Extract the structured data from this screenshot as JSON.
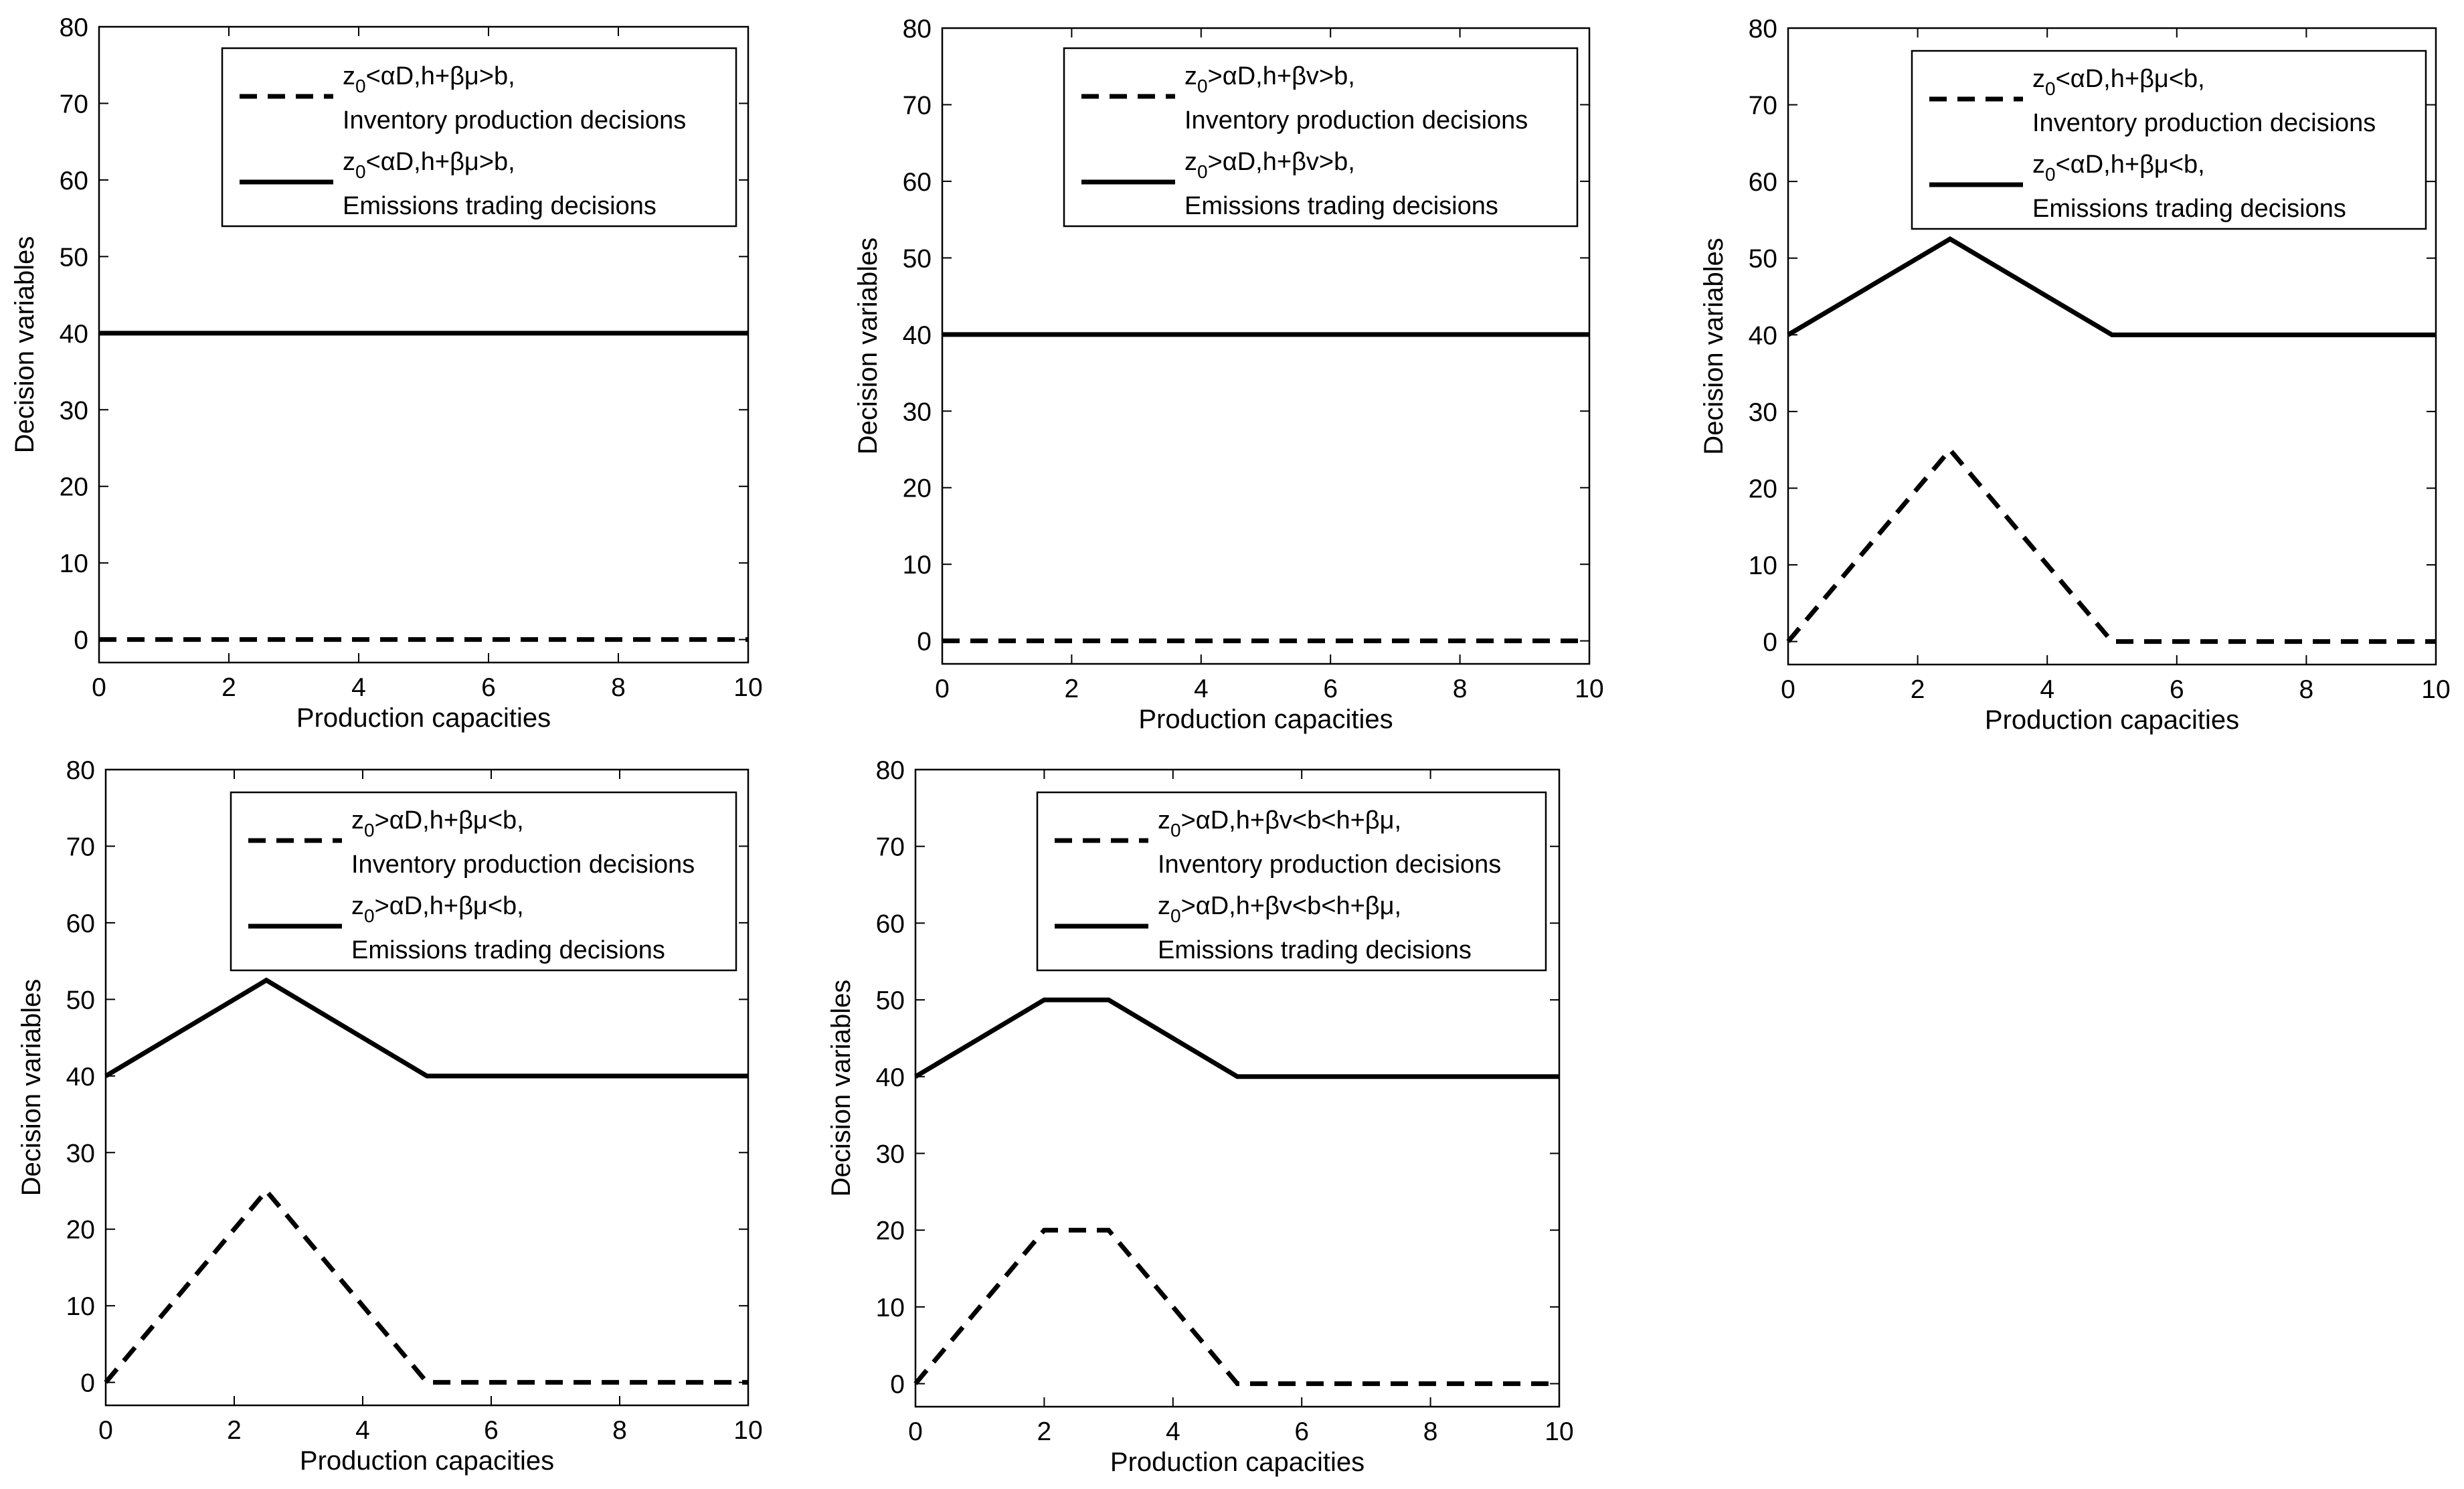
{
  "chart_data": [
    {
      "type": "line",
      "title": "",
      "xlabel": "Production capacities",
      "ylabel": "Decision variables",
      "xlim": [
        0,
        10
      ],
      "ylim": [
        -3,
        80
      ],
      "xticks": [
        0,
        2,
        4,
        6,
        8,
        10
      ],
      "yticks": [
        0,
        10,
        20,
        30,
        40,
        50,
        60,
        70,
        80
      ],
      "tick_labels_x": [
        "0",
        "2",
        "4",
        "6",
        "8",
        "10"
      ],
      "tick_labels_y": [
        "0",
        "10",
        "20",
        "30",
        "40",
        "50",
        "60",
        "70",
        "80"
      ],
      "grid": false,
      "legend_position": "top-right",
      "series": [
        {
          "name": "Inventory production decisions",
          "condition": "z0<αD,h+βμ>b,",
          "legend_main": "z",
          "legend_sub": "0",
          "legend_rest": "<αD,h+βμ>b,",
          "legend_desc": "Inventory production decisions",
          "style": "dashed",
          "x": [
            0,
            10
          ],
          "y": [
            0,
            0
          ]
        },
        {
          "name": "Emissions trading decisions",
          "condition": "z0<αD,h+βμ>b,",
          "legend_main": "z",
          "legend_sub": "0",
          "legend_rest": "<αD,h+βμ>b,",
          "legend_desc": "Emissions trading decisions",
          "style": "solid",
          "x": [
            0,
            10
          ],
          "y": [
            40,
            40
          ]
        }
      ]
    },
    {
      "type": "line",
      "title": "",
      "xlabel": "Production capacities",
      "ylabel": "Decision variables",
      "xlim": [
        0,
        10
      ],
      "ylim": [
        -3,
        80
      ],
      "xticks": [
        0,
        2,
        4,
        6,
        8,
        10
      ],
      "yticks": [
        0,
        10,
        20,
        30,
        40,
        50,
        60,
        70,
        80
      ],
      "tick_labels_x": [
        "0",
        "2",
        "4",
        "6",
        "8",
        "10"
      ],
      "tick_labels_y": [
        "0",
        "10",
        "20",
        "30",
        "40",
        "50",
        "60",
        "70",
        "80"
      ],
      "grid": false,
      "legend_position": "top-right",
      "series": [
        {
          "name": "Inventory production decisions",
          "condition": "z0>αD,h+βv>b,",
          "legend_main": "z",
          "legend_sub": "0",
          "legend_rest": ">αD,h+βv>b,",
          "legend_desc": "Inventory production decisions",
          "style": "dashed",
          "x": [
            0,
            10
          ],
          "y": [
            0,
            0
          ]
        },
        {
          "name": "Emissions trading decisions",
          "condition": "z0>αD,h+βv>b,",
          "legend_main": "z",
          "legend_sub": "0",
          "legend_rest": ">αD,h+βv>b,",
          "legend_desc": "Emissions trading decisions",
          "style": "solid",
          "x": [
            0,
            10
          ],
          "y": [
            40,
            40
          ]
        }
      ]
    },
    {
      "type": "line",
      "title": "",
      "xlabel": "Production capacities",
      "ylabel": "Decision variables",
      "xlim": [
        0,
        10
      ],
      "ylim": [
        -3,
        80
      ],
      "xticks": [
        0,
        2,
        4,
        6,
        8,
        10
      ],
      "yticks": [
        0,
        10,
        20,
        30,
        40,
        50,
        60,
        70,
        80
      ],
      "tick_labels_x": [
        "0",
        "2",
        "4",
        "6",
        "8",
        "10"
      ],
      "tick_labels_y": [
        "0",
        "10",
        "20",
        "30",
        "40",
        "50",
        "60",
        "70",
        "80"
      ],
      "grid": false,
      "legend_position": "top-right",
      "series": [
        {
          "name": "Inventory production decisions",
          "condition": "z0<αD,h+βμ<b,",
          "legend_main": "z",
          "legend_sub": "0",
          "legend_rest": "<αD,h+βμ<b,",
          "legend_desc": "Inventory production decisions",
          "style": "dashed",
          "x": [
            0,
            2.5,
            5,
            10
          ],
          "y": [
            0,
            25,
            0,
            0
          ]
        },
        {
          "name": "Emissions trading decisions",
          "condition": "z0<αD,h+βμ<b,",
          "legend_main": "z",
          "legend_sub": "0",
          "legend_rest": "<αD,h+βμ<b,",
          "legend_desc": "Emissions trading decisions",
          "style": "solid",
          "x": [
            0,
            2.5,
            5,
            10
          ],
          "y": [
            40,
            52.5,
            40,
            40
          ]
        }
      ]
    },
    {
      "type": "line",
      "title": "",
      "xlabel": "Production capacities",
      "ylabel": "Decision variables",
      "xlim": [
        0,
        10
      ],
      "ylim": [
        -3,
        80
      ],
      "xticks": [
        0,
        2,
        4,
        6,
        8,
        10
      ],
      "yticks": [
        0,
        10,
        20,
        30,
        40,
        50,
        60,
        70,
        80
      ],
      "tick_labels_x": [
        "0",
        "2",
        "4",
        "6",
        "8",
        "10"
      ],
      "tick_labels_y": [
        "0",
        "10",
        "20",
        "30",
        "40",
        "50",
        "60",
        "70",
        "80"
      ],
      "grid": false,
      "legend_position": "top-right",
      "series": [
        {
          "name": "Inventory production decisions",
          "condition": "z0>αD,h+βμ<b,",
          "legend_main": "z",
          "legend_sub": "0",
          "legend_rest": ">αD,h+βμ<b,",
          "legend_desc": "Inventory production decisions",
          "style": "dashed",
          "x": [
            0,
            2.5,
            5,
            10
          ],
          "y": [
            0,
            25,
            0,
            0
          ]
        },
        {
          "name": "Emissions trading decisions",
          "condition": "z0>αD,h+βμ<b,",
          "legend_main": "z",
          "legend_sub": "0",
          "legend_rest": ">αD,h+βμ<b,",
          "legend_desc": "Emissions trading decisions",
          "style": "solid",
          "x": [
            0,
            2.5,
            5,
            10
          ],
          "y": [
            40,
            52.5,
            40,
            40
          ]
        }
      ]
    },
    {
      "type": "line",
      "title": "",
      "xlabel": "Production capacities",
      "ylabel": "Decision variables",
      "xlim": [
        0,
        10
      ],
      "ylim": [
        -3,
        80
      ],
      "xticks": [
        0,
        2,
        4,
        6,
        8,
        10
      ],
      "yticks": [
        0,
        10,
        20,
        30,
        40,
        50,
        60,
        70,
        80
      ],
      "tick_labels_x": [
        "0",
        "2",
        "4",
        "6",
        "8",
        "10"
      ],
      "tick_labels_y": [
        "0",
        "10",
        "20",
        "30",
        "40",
        "50",
        "60",
        "70",
        "80"
      ],
      "grid": false,
      "legend_position": "top-right",
      "series": [
        {
          "name": "Inventory production decisions",
          "condition": "z0>αD,h+βv<b<h+βμ,",
          "legend_main": "z",
          "legend_sub": "0",
          "legend_rest": ">αD,h+βv<b<h+βμ,",
          "legend_desc": "Inventory production decisions",
          "style": "dashed",
          "x": [
            0,
            2,
            3,
            5,
            10
          ],
          "y": [
            0,
            20,
            20,
            0,
            0
          ]
        },
        {
          "name": "Emissions trading decisions",
          "condition": "z0>αD,h+βv<b<h+βμ,",
          "legend_main": "z",
          "legend_sub": "0",
          "legend_rest": ">αD,h+βv<b<h+βμ,",
          "legend_desc": "Emissions trading decisions",
          "style": "solid",
          "x": [
            0,
            2,
            3,
            5,
            10
          ],
          "y": [
            40,
            50,
            50,
            40,
            40
          ]
        }
      ]
    }
  ],
  "style": {
    "line_color": "#000000",
    "background": "#ffffff"
  }
}
